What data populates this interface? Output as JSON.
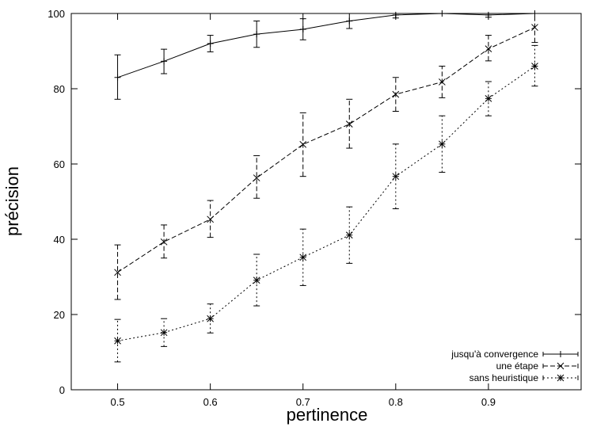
{
  "chart_data": {
    "type": "line",
    "xlabel": "pertinence",
    "ylabel": "précision",
    "xlim": [
      0.45,
      1.0
    ],
    "ylim": [
      0,
      100
    ],
    "xticks": [
      0.5,
      0.6,
      0.7,
      0.8,
      0.9
    ],
    "yticks": [
      0,
      20,
      40,
      60,
      80,
      100
    ],
    "xtick_labels": [
      "0.5",
      "0.6",
      "0.7",
      "0.8",
      "0.9"
    ],
    "ytick_labels": [
      "0",
      "20",
      "40",
      "60",
      "80",
      "100"
    ],
    "legend_position": "bottom-right",
    "grid": false,
    "x": [
      0.5,
      0.55,
      0.6,
      0.65,
      0.7,
      0.75,
      0.8,
      0.85,
      0.9,
      0.95
    ],
    "series": [
      {
        "name": "jusqu'à convergence",
        "marker": "+",
        "dash": "solid",
        "values": [
          83,
          87.3,
          92,
          94.5,
          95.8,
          98,
          99.6,
          100,
          99.6,
          100
        ],
        "err_low": [
          77.2,
          84,
          89.8,
          91,
          93,
          96,
          98.8,
          100,
          99,
          100
        ],
        "err_high": [
          89,
          90.5,
          94.2,
          98,
          98.6,
          100,
          100,
          100,
          100,
          100
        ]
      },
      {
        "name": "une étape",
        "marker": "x",
        "dash": "dashed",
        "values": [
          31.2,
          39.3,
          45.3,
          56.3,
          65.2,
          70.6,
          78.5,
          81.8,
          90.6,
          96.3
        ],
        "err_low": [
          24,
          35,
          40.5,
          50.9,
          56.7,
          64.2,
          74,
          77.6,
          87.4,
          92.3
        ],
        "err_high": [
          38.5,
          43.8,
          50.3,
          62.2,
          73.6,
          77.2,
          83,
          86,
          94.2,
          100
        ]
      },
      {
        "name": "sans heuristique",
        "marker": "*",
        "dash": "dotted",
        "values": [
          13,
          15.2,
          18.9,
          29.1,
          35.2,
          41.1,
          56.7,
          65.3,
          77.4,
          86
        ],
        "err_low": [
          7.4,
          11.5,
          15.1,
          22.3,
          27.7,
          33.6,
          48.1,
          57.8,
          72.8,
          80.7
        ],
        "err_high": [
          18.7,
          18.9,
          22.8,
          36,
          42.7,
          48.6,
          65.3,
          72.8,
          81.9,
          91.5
        ]
      }
    ]
  }
}
